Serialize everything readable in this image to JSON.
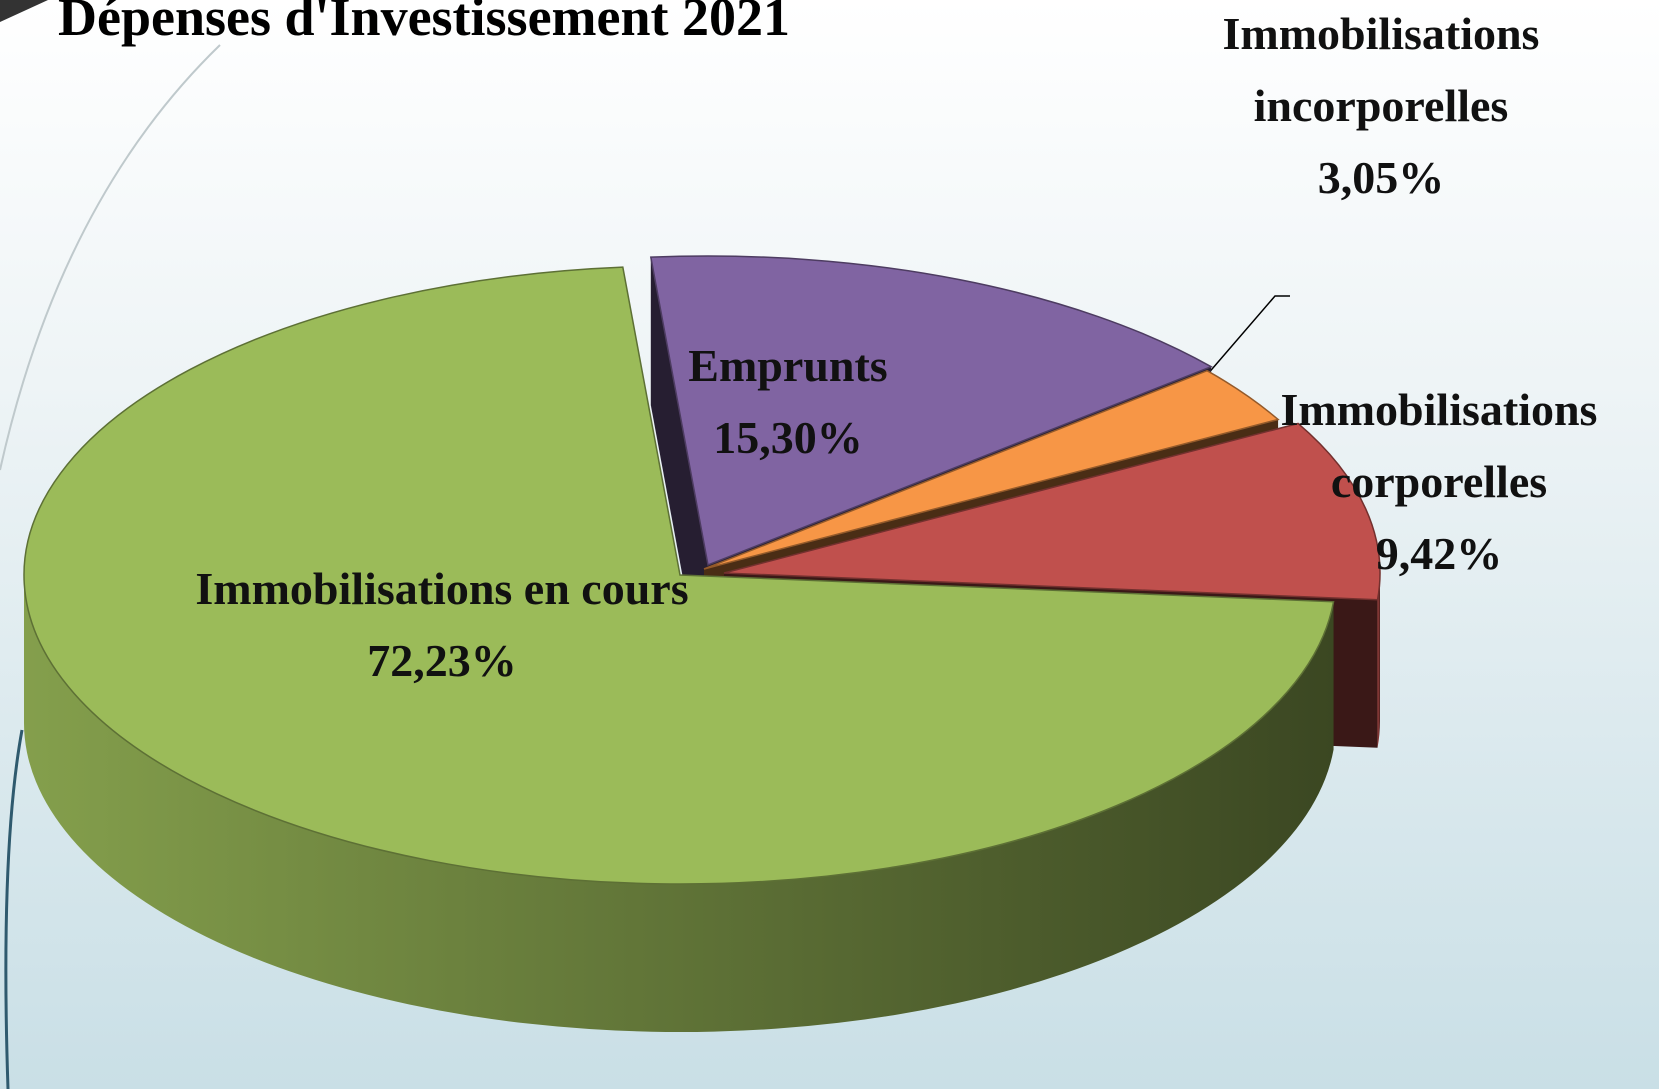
{
  "chart_data": {
    "type": "pie3d",
    "title": "Dépenses d'Investissement 2021",
    "categories": [
      "Emprunts",
      "Immobilisations incorporelles",
      "Immobilisations corporelles",
      "Immobilisations en cours"
    ],
    "values": [
      15.3,
      3.05,
      9.42,
      72.23
    ],
    "value_labels": [
      "15,30%",
      "3,05%",
      "9,42%",
      "72,23%"
    ],
    "colors": [
      "#8064a2",
      "#f79646",
      "#c0504d",
      "#9bbb59"
    ]
  }
}
